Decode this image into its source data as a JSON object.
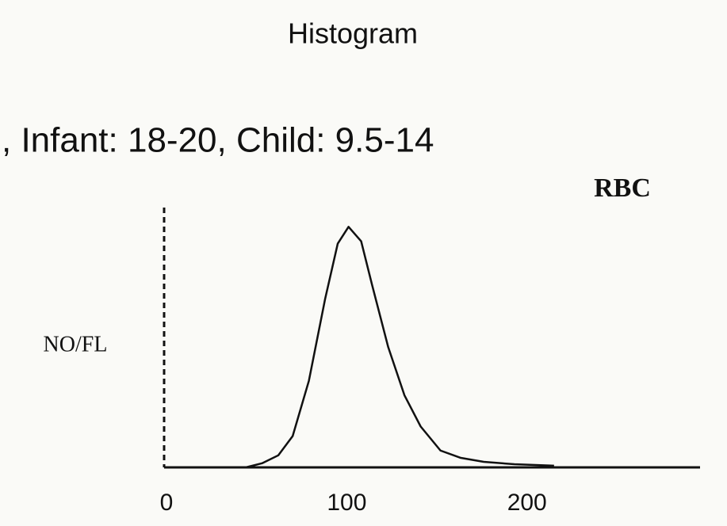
{
  "chart_data": {
    "type": "line",
    "title": "Histogram",
    "subtitle": ", Infant: 18-20, Child: 9.5-14",
    "label": "RBC",
    "ylabel": "NO/FL",
    "x": [
      44,
      53,
      62,
      70,
      79,
      88,
      95,
      101,
      108,
      114,
      123,
      132,
      141,
      152,
      163,
      176,
      193,
      215
    ],
    "values": [
      0,
      1.7,
      5,
      13,
      36,
      70,
      93,
      100,
      94,
      76,
      50,
      30,
      17,
      7,
      4,
      2.3,
      1.3,
      0.7
    ],
    "color": "#111111",
    "xlim": [
      0,
      296
    ],
    "xticks": [
      0,
      100,
      200
    ],
    "ylim": [
      0,
      108
    ]
  }
}
